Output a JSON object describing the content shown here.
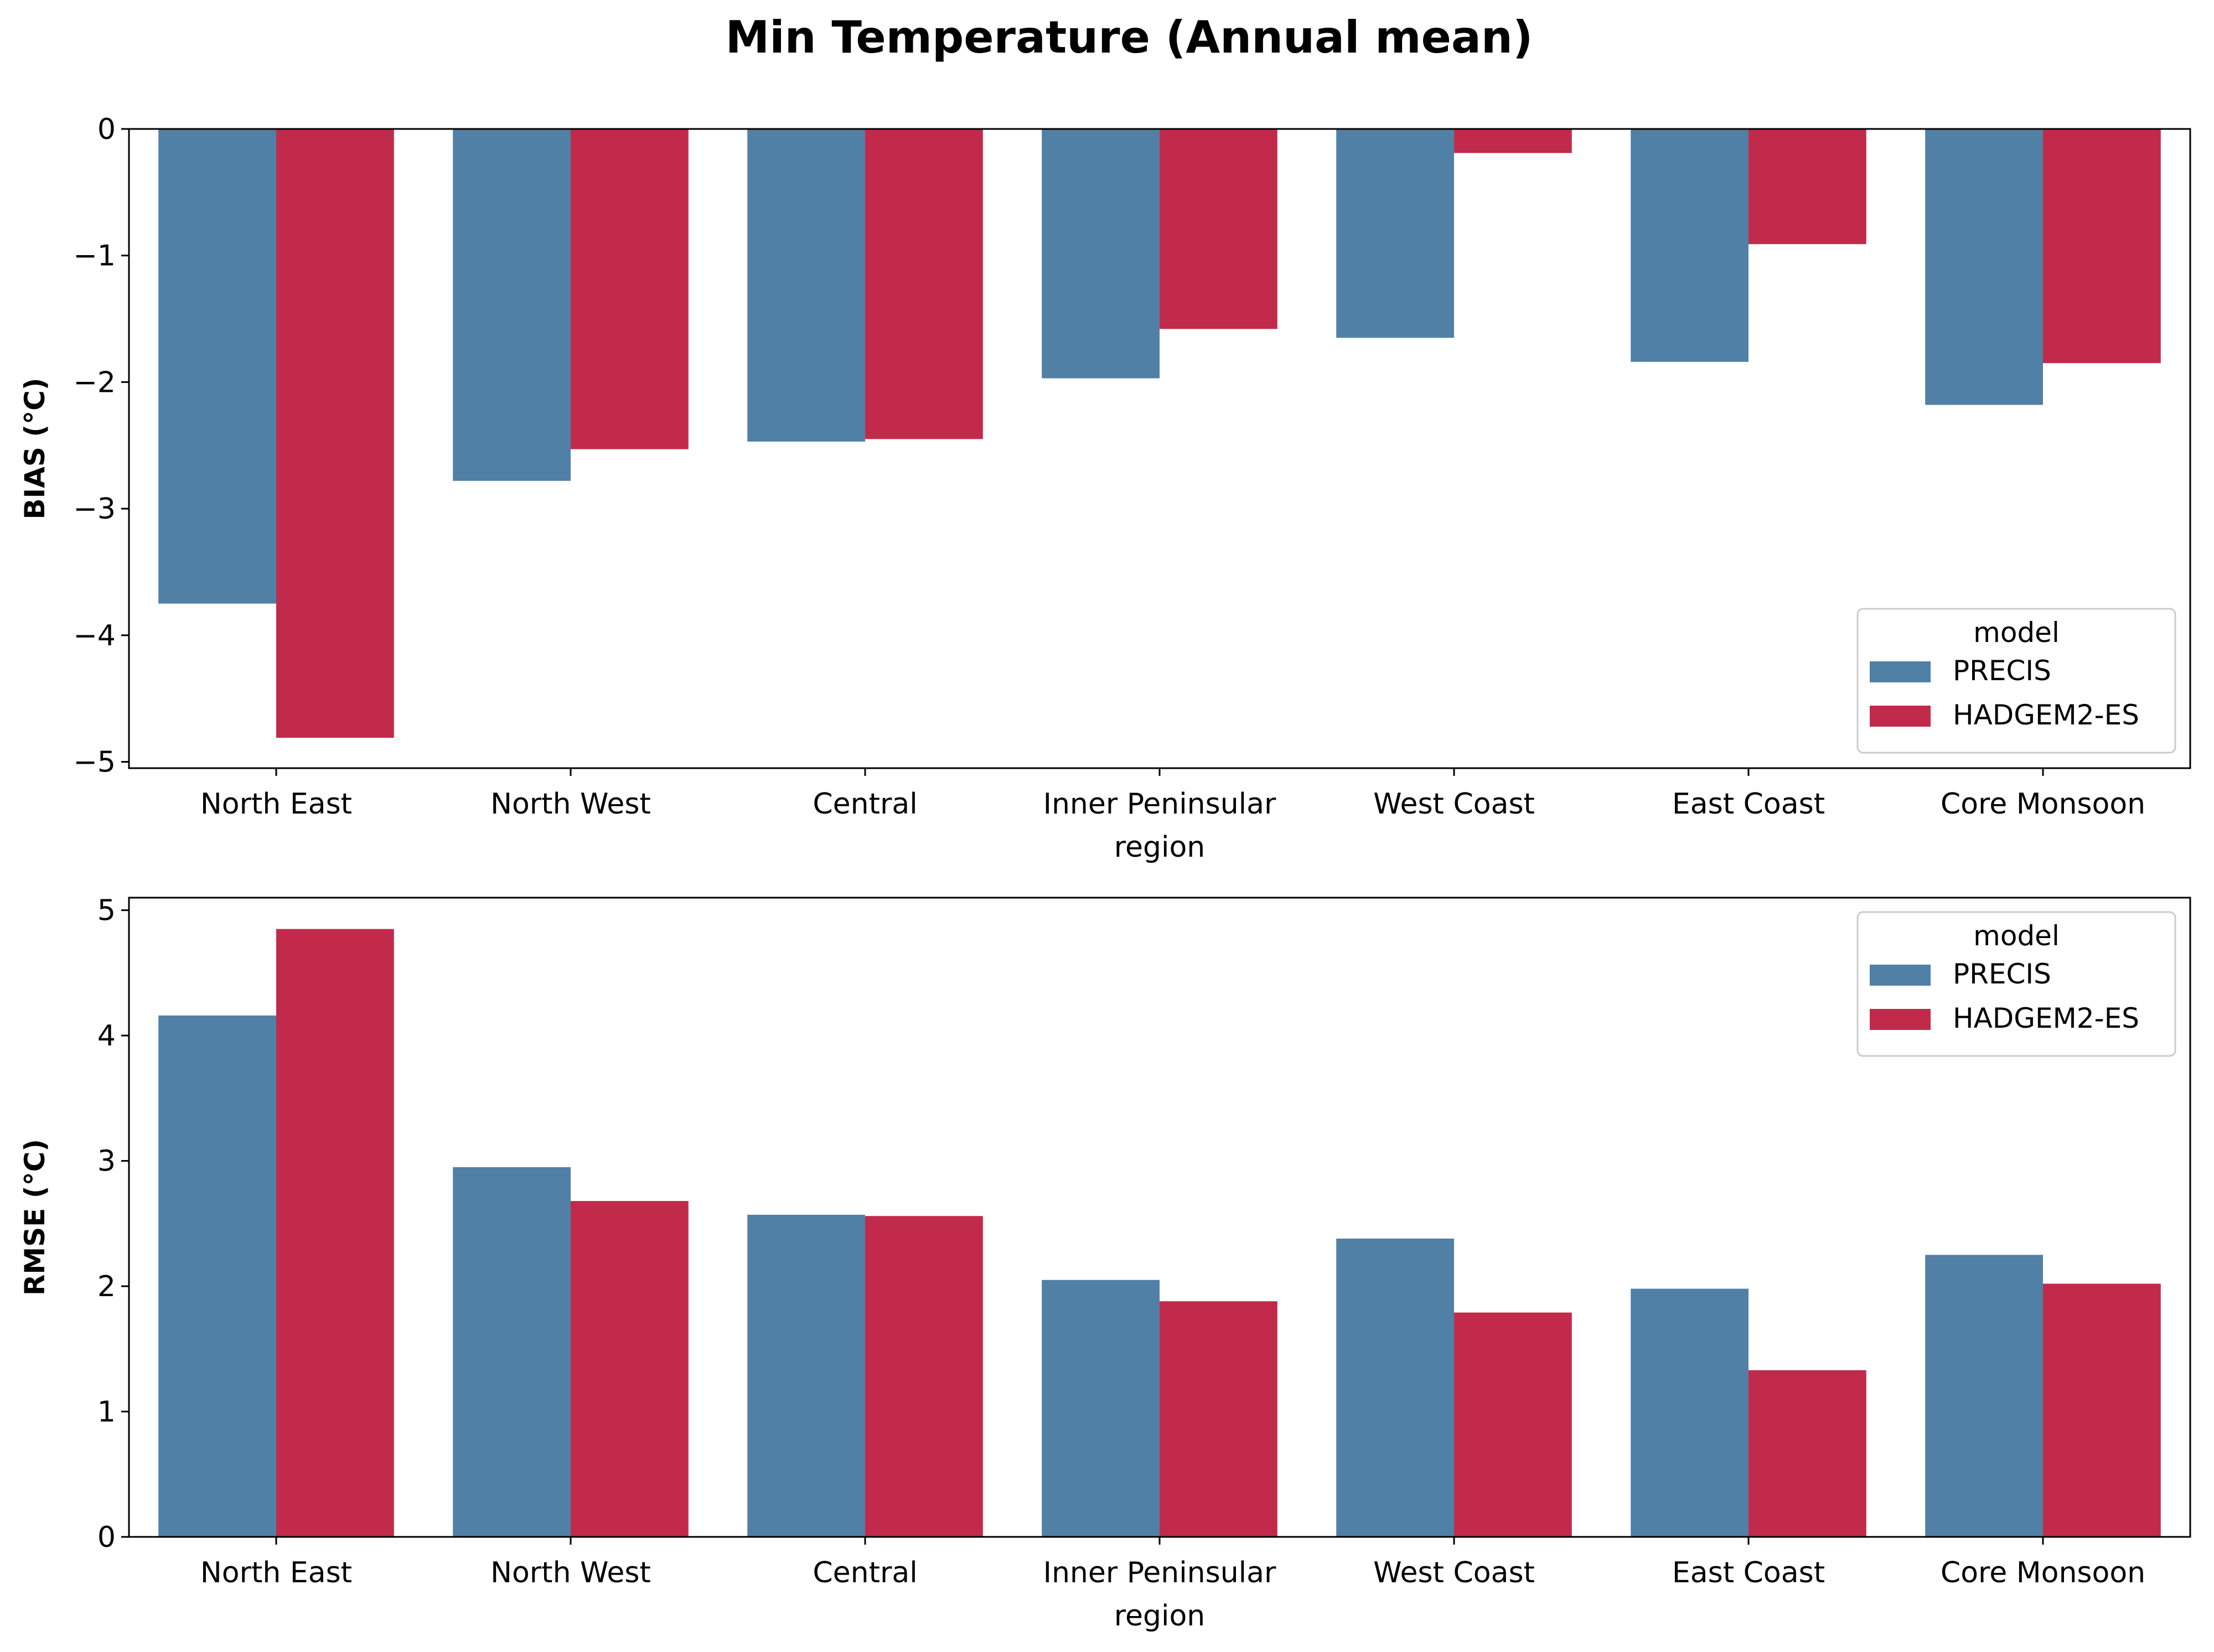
{
  "chart_data": {
    "title": "Min Temperature (Annual mean)",
    "colors": {
      "PRECIS": "#5180a6",
      "HADGEM2-ES": "#c22a4b"
    },
    "charts": [
      {
        "type": "bar",
        "ylabel": "BIAS ($^\\circ$C)",
        "ylabel_display": "BIAS (°C)",
        "xlabel": "region",
        "categories": [
          "North East",
          "North West",
          "Central",
          "Inner Peninsular",
          "West Coast",
          "East Coast",
          "Core Monsoon"
        ],
        "series": [
          {
            "name": "PRECIS",
            "values": [
              -3.75,
              -2.78,
              -2.47,
              -1.97,
              -1.65,
              -1.84,
              -2.18
            ]
          },
          {
            "name": "HADGEM2-ES",
            "values": [
              -4.81,
              -2.53,
              -2.45,
              -1.58,
              -0.19,
              -0.91,
              -1.85
            ]
          }
        ],
        "ylim": [
          -5.05,
          0
        ],
        "yticks": [
          0,
          -1,
          -2,
          -3,
          -4,
          -5
        ],
        "ytick_labels": [
          "0",
          "−1",
          "−2",
          "−3",
          "−4",
          "−5"
        ],
        "legend": {
          "title": "model",
          "placement": "lower-right"
        }
      },
      {
        "type": "bar",
        "ylabel_display": "RMSE (°C)",
        "xlabel": "region",
        "categories": [
          "North East",
          "North West",
          "Central",
          "Inner Peninsular",
          "West Coast",
          "East Coast",
          "Core Monsoon"
        ],
        "series": [
          {
            "name": "PRECIS",
            "values": [
              4.16,
              2.95,
              2.57,
              2.05,
              2.38,
              1.98,
              2.25
            ]
          },
          {
            "name": "HADGEM2-ES",
            "values": [
              4.85,
              2.68,
              2.56,
              1.88,
              1.79,
              1.33,
              2.02
            ]
          }
        ],
        "ylim": [
          0,
          5.1
        ],
        "yticks": [
          0,
          1,
          2,
          3,
          4,
          5
        ],
        "ytick_labels": [
          "0",
          "1",
          "2",
          "3",
          "4",
          "5"
        ],
        "legend": {
          "title": "model",
          "placement": "upper-right"
        }
      }
    ]
  }
}
